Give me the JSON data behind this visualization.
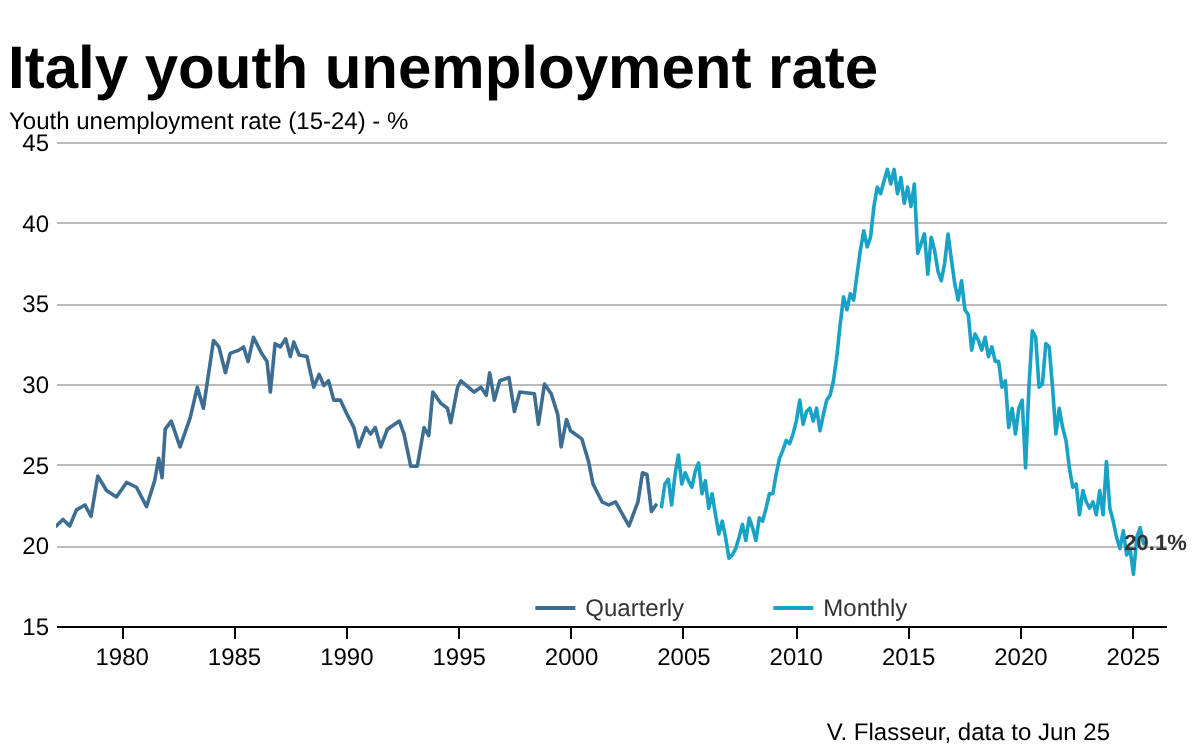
{
  "chart_data": {
    "type": "line",
    "title": "Italy youth unemployment rate",
    "ylabel": "Youth unemployment rate (15-24) - %",
    "xlim": [
      1977.1,
      2026.5
    ],
    "xticks": [
      1980,
      1985,
      1990,
      1995,
      2000,
      2005,
      2010,
      2015,
      2020,
      2025
    ],
    "ylim": [
      15,
      45
    ],
    "yticks": [
      15,
      20,
      25,
      30,
      35,
      40,
      45
    ],
    "grid": "y",
    "legend": "bottom",
    "annotations": [
      {
        "text": "20.1%",
        "x": 2025.5,
        "y": 20.1
      },
      "V. Flasseur, data to Jun 25"
    ],
    "series": [
      {
        "name": "Quarterly",
        "color": "#3d6e91",
        "x": [
          1977.11,
          1977.41,
          1977.71,
          1978.01,
          1978.39,
          1978.66,
          1978.96,
          1979.35,
          1979.79,
          1980.24,
          1980.68,
          1981.13,
          1981.49,
          1981.67,
          1981.82,
          1981.96,
          1982.23,
          1982.62,
          1983.07,
          1983.39,
          1983.66,
          1984.11,
          1984.35,
          1984.64,
          1984.85,
          1985.24,
          1985.45,
          1985.65,
          1985.89,
          1986.25,
          1986.49,
          1986.64,
          1986.85,
          1987.08,
          1987.32,
          1987.53,
          1987.68,
          1987.92,
          1988.27,
          1988.57,
          1988.81,
          1989.02,
          1989.23,
          1989.46,
          1989.76,
          1990.06,
          1990.36,
          1990.57,
          1990.89,
          1991.1,
          1991.31,
          1991.55,
          1991.85,
          1992.38,
          1992.59,
          1992.89,
          1993.18,
          1993.48,
          1993.69,
          1993.87,
          1994.23,
          1994.52,
          1994.67,
          1994.97,
          1995.12,
          1995.71,
          1996.01,
          1996.25,
          1996.4,
          1996.61,
          1996.85,
          1997.26,
          1997.5,
          1997.74,
          1998.39,
          1998.57,
          1998.84,
          1999.14,
          1999.43,
          1999.58,
          1999.82,
          2000.0,
          2000.5,
          2000.8,
          2001.0,
          2001.4,
          2001.7,
          2002.0,
          2002.6,
          2003.0,
          2003.2,
          2003.4,
          2003.6,
          2003.8
        ],
        "values": [
          21.2,
          21.6,
          21.2,
          22.2,
          22.5,
          21.8,
          24.3,
          23.4,
          23.0,
          23.9,
          23.6,
          22.4,
          24.0,
          25.4,
          24.2,
          27.2,
          27.7,
          26.1,
          27.9,
          29.8,
          28.5,
          32.7,
          32.3,
          30.7,
          31.9,
          32.1,
          32.3,
          31.4,
          32.9,
          31.9,
          31.4,
          29.5,
          32.5,
          32.3,
          32.8,
          31.7,
          32.6,
          31.8,
          31.7,
          29.8,
          30.6,
          29.9,
          30.2,
          29.0,
          29.0,
          28.1,
          27.3,
          26.1,
          27.3,
          26.9,
          27.3,
          26.1,
          27.2,
          27.7,
          26.9,
          24.9,
          24.9,
          27.3,
          26.8,
          29.5,
          28.8,
          28.5,
          27.6,
          29.8,
          30.2,
          29.5,
          29.8,
          29.3,
          30.7,
          29.0,
          30.2,
          30.4,
          28.3,
          29.5,
          29.4,
          27.5,
          30.0,
          29.4,
          28.1,
          26.1,
          27.8,
          27.1,
          26.6,
          25.2,
          23.8,
          22.7,
          22.5,
          22.7,
          21.2,
          22.7,
          24.5,
          24.4,
          22.1,
          22.5
        ]
      },
      {
        "name": "Monthly",
        "color": "#17a2c6",
        "x": [
          2004.05,
          2004.2,
          2004.35,
          2004.5,
          2004.65,
          2004.8,
          2004.95,
          2005.1,
          2005.25,
          2005.4,
          2005.55,
          2005.7,
          2005.85,
          2006.0,
          2006.15,
          2006.3,
          2006.45,
          2006.6,
          2006.75,
          2006.9,
          2007.05,
          2007.2,
          2007.35,
          2007.5,
          2007.65,
          2007.8,
          2007.95,
          2008.1,
          2008.25,
          2008.4,
          2008.55,
          2008.7,
          2008.85,
          2009.0,
          2009.15,
          2009.3,
          2009.45,
          2009.6,
          2009.75,
          2009.9,
          2010.05,
          2010.2,
          2010.35,
          2010.5,
          2010.65,
          2010.8,
          2010.95,
          2011.1,
          2011.25,
          2011.4,
          2011.55,
          2011.7,
          2011.85,
          2012.0,
          2012.15,
          2012.3,
          2012.45,
          2012.6,
          2012.75,
          2012.9,
          2013.05,
          2013.2,
          2013.35,
          2013.5,
          2013.65,
          2013.8,
          2013.95,
          2014.1,
          2014.25,
          2014.4,
          2014.55,
          2014.7,
          2014.85,
          2015.0,
          2015.15,
          2015.3,
          2015.45,
          2015.6,
          2015.75,
          2015.9,
          2016.05,
          2016.2,
          2016.35,
          2016.5,
          2016.65,
          2016.8,
          2016.95,
          2017.1,
          2017.25,
          2017.4,
          2017.55,
          2017.7,
          2017.85,
          2018.0,
          2018.15,
          2018.3,
          2018.45,
          2018.6,
          2018.75,
          2018.9,
          2019.05,
          2019.2,
          2019.35,
          2019.5,
          2019.65,
          2019.8,
          2019.95,
          2020.1,
          2020.25,
          2020.4,
          2020.55,
          2020.7,
          2020.85,
          2021.0,
          2021.15,
          2021.3,
          2021.45,
          2021.6,
          2021.75,
          2021.9,
          2022.05,
          2022.2,
          2022.35,
          2022.5,
          2022.65,
          2022.8,
          2022.95,
          2023.1,
          2023.25,
          2023.4,
          2023.55,
          2023.7,
          2023.85,
          2024.0,
          2024.15,
          2024.3,
          2024.45,
          2024.6,
          2024.75,
          2024.9,
          2025.05,
          2025.2,
          2025.35,
          2025.5
        ],
        "values": [
          22.4,
          23.8,
          24.1,
          22.5,
          24.4,
          25.6,
          23.8,
          24.5,
          24.0,
          23.6,
          24.6,
          25.1,
          23.2,
          24.0,
          22.3,
          23.2,
          21.9,
          20.7,
          21.5,
          20.5,
          19.2,
          19.4,
          19.8,
          20.5,
          21.3,
          20.3,
          21.7,
          21.1,
          20.3,
          21.7,
          21.5,
          22.3,
          23.2,
          23.2,
          24.4,
          25.4,
          25.9,
          26.5,
          26.3,
          26.9,
          27.7,
          29.0,
          27.5,
          28.3,
          28.5,
          27.7,
          28.5,
          27.1,
          28.1,
          29.0,
          29.3,
          30.2,
          31.7,
          33.7,
          35.4,
          34.6,
          35.6,
          35.2,
          36.8,
          38.3,
          39.5,
          38.5,
          39.1,
          41.0,
          42.2,
          41.8,
          42.6,
          43.3,
          42.4,
          43.3,
          41.8,
          42.8,
          41.2,
          42.2,
          41.0,
          42.4,
          38.1,
          38.7,
          39.3,
          36.8,
          39.1,
          38.3,
          37.0,
          36.4,
          37.5,
          39.3,
          37.7,
          36.2,
          35.2,
          36.4,
          34.6,
          34.3,
          32.1,
          33.1,
          32.7,
          32.1,
          32.9,
          31.7,
          32.3,
          31.4,
          31.4,
          29.8,
          30.2,
          27.3,
          28.5,
          26.9,
          28.5,
          29.0,
          24.8,
          29.8,
          33.3,
          32.9,
          29.8,
          30.0,
          32.5,
          32.3,
          29.8,
          26.9,
          28.5,
          27.3,
          26.5,
          24.8,
          23.6,
          23.8,
          21.9,
          23.4,
          22.7,
          22.3,
          22.7,
          21.9,
          23.4,
          21.9,
          25.2,
          22.3,
          21.5,
          20.5,
          19.8,
          20.9,
          19.4,
          19.8,
          18.2,
          20.5,
          21.1,
          20.1
        ]
      }
    ]
  }
}
